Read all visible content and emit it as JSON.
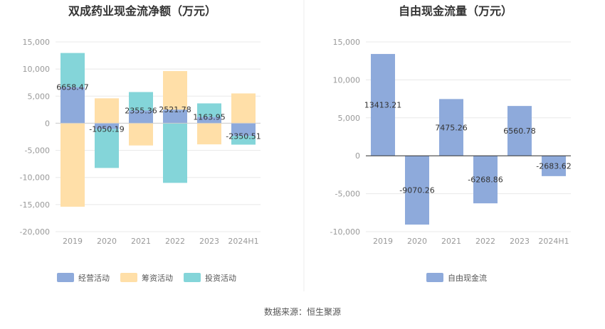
{
  "chart_data": [
    {
      "type": "bar",
      "stacked": true,
      "title": "双成药业现金流净额（万元）",
      "categories": [
        "2019",
        "2020",
        "2021",
        "2022",
        "2023",
        "2024H1"
      ],
      "ylim": [
        -20000,
        15000
      ],
      "yticks": [
        15000,
        10000,
        5000,
        0,
        -5000,
        -10000,
        -15000,
        -20000
      ],
      "ytick_labels": [
        "15,000",
        "10,000",
        "5,000",
        "0",
        "-5,000",
        "-10,000",
        "-15,000",
        "-20,000"
      ],
      "series": [
        {
          "name": "经营活动",
          "color": "#8eaadb",
          "values": [
            6658.47,
            -1050.19,
            2355.36,
            2521.78,
            1163.95,
            -2350.51
          ]
        },
        {
          "name": "筹资活动",
          "color": "#ffdfa8",
          "values": [
            -15400,
            4600,
            -4100,
            7100,
            -3900,
            5500
          ]
        },
        {
          "name": "投资活动",
          "color": "#84d5d9",
          "values": [
            6300,
            -7200,
            3400,
            -11000,
            2500,
            -1600
          ]
        }
      ],
      "data_labels": [
        "6658.47",
        "-1050.19",
        "2355.36",
        "2521.78",
        "1163.95",
        "-2350.51"
      ],
      "grid": true,
      "legend_position": "bottom"
    },
    {
      "type": "bar",
      "title": "自由现金流量（万元）",
      "categories": [
        "2019",
        "2020",
        "2021",
        "2022",
        "2023",
        "2024H1"
      ],
      "ylim": [
        -10000,
        15000
      ],
      "yticks": [
        15000,
        10000,
        5000,
        0,
        -5000,
        -10000
      ],
      "ytick_labels": [
        "15,000",
        "10,000",
        "5,000",
        "0",
        "-5,000",
        "-10,000"
      ],
      "series": [
        {
          "name": "自由现金流",
          "color": "#8eaadb",
          "values": [
            13413.21,
            -9070.26,
            7475.26,
            -6268.86,
            6560.78,
            -2683.62
          ]
        }
      ],
      "data_labels": [
        "13413.21",
        "-9070.26",
        "7475.26",
        "-6268.86",
        "6560.78",
        "-2683.62"
      ],
      "grid": true,
      "legend_position": "bottom"
    }
  ],
  "footer": {
    "source": "数据来源：恒生聚源"
  }
}
